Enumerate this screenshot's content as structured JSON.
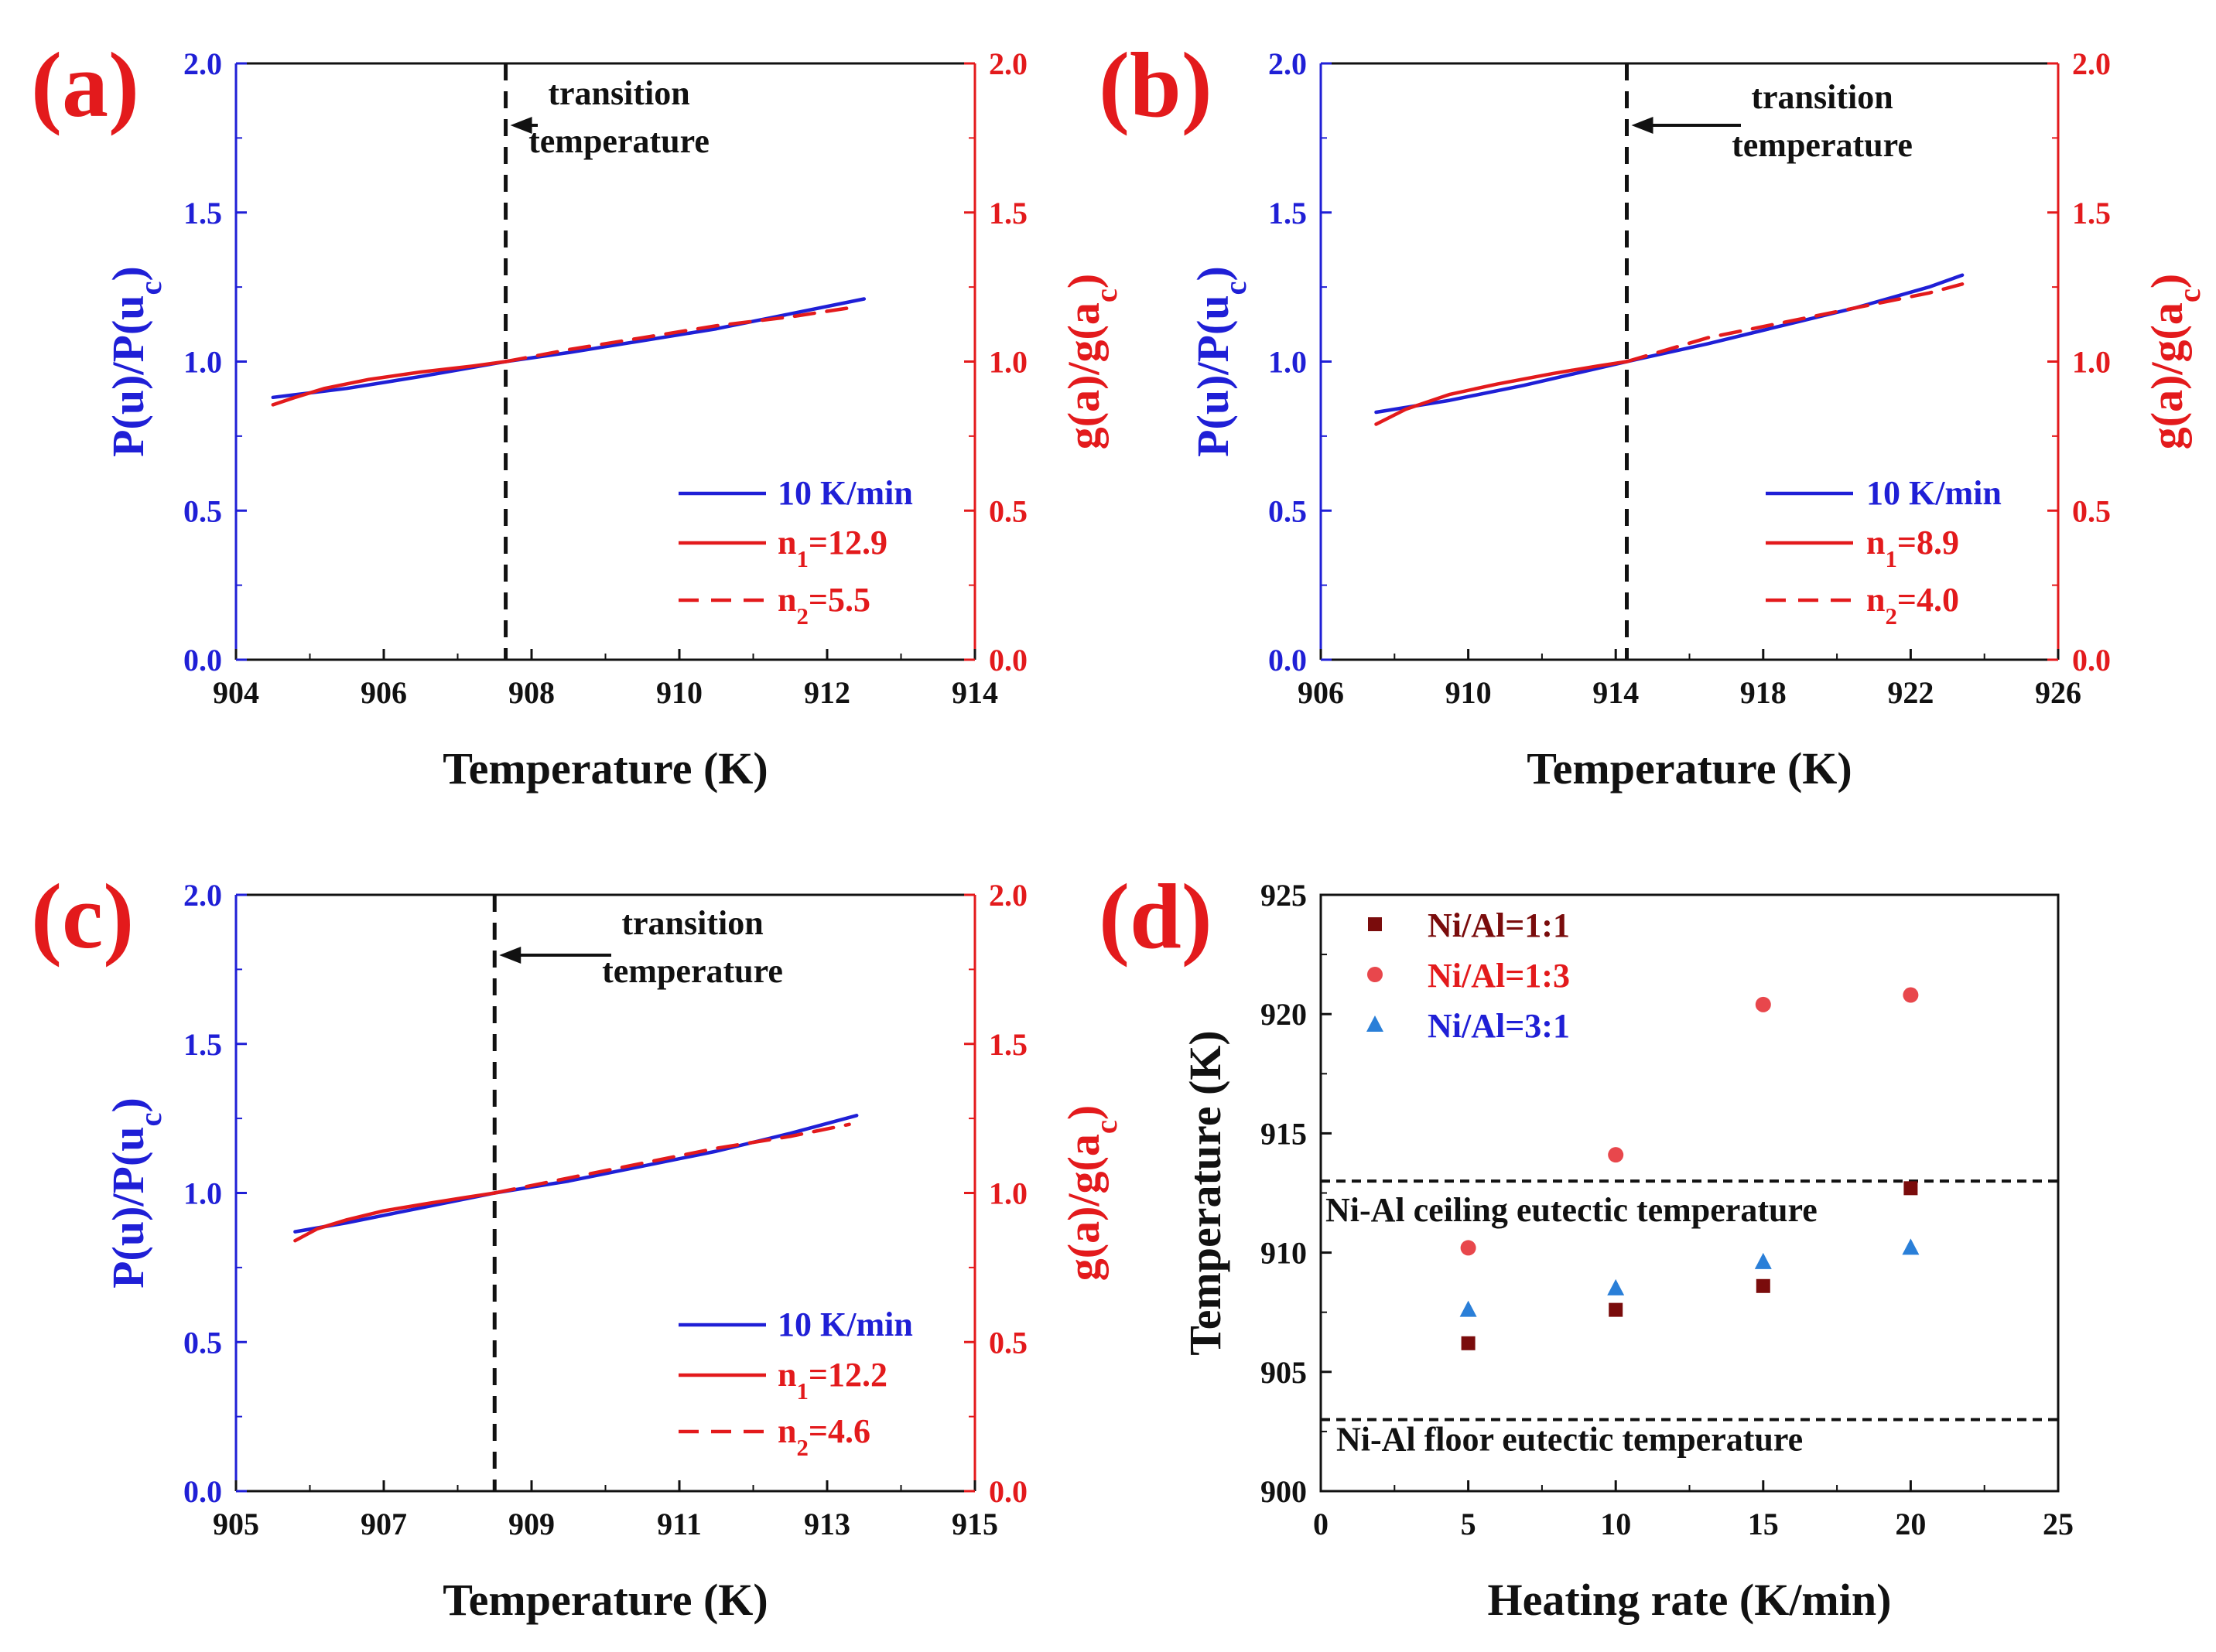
{
  "colors": {
    "blue": "#1f1fd6",
    "red": "#e31a1c",
    "black": "#111111",
    "darkred": "#7a0c0c",
    "pink": "#e8474c",
    "lightblue": "#2a7fd8"
  },
  "chart_data": [
    {
      "type": "line",
      "panel_label": "(a)",
      "xlabel": "Temperature (K)",
      "ylabel_left": {
        "main": "P(u)/P(u",
        "sub": "c",
        "close": ")"
      },
      "ylabel_right": {
        "main": "g(a)/g(a",
        "sub": "c",
        "close": ")"
      },
      "xlim": [
        904,
        914
      ],
      "xticks": [
        "904",
        "906",
        "908",
        "910",
        "912",
        "914"
      ],
      "ylim": [
        0,
        2
      ],
      "yticks": [
        "0.0",
        "0.5",
        "1.0",
        "1.5",
        "2.0"
      ],
      "transition_x": 907.65,
      "annotation": [
        "transition",
        "temperature"
      ],
      "legend": [
        {
          "pre": "10 K/min",
          "sub": "",
          "post": ""
        },
        {
          "pre": "n",
          "sub": "1",
          "post": "=12.9"
        },
        {
          "pre": "n",
          "sub": "2",
          "post": "=5.5"
        }
      ],
      "series": [
        {
          "name": "10 K/min",
          "x": [
            904.5,
            905.5,
            906.5,
            907.65,
            908.5,
            909.5,
            910.5,
            911.5,
            912.5
          ],
          "y": [
            0.88,
            0.91,
            0.95,
            1.0,
            1.03,
            1.07,
            1.11,
            1.16,
            1.21
          ]
        },
        {
          "name": "n1=12.9",
          "x": [
            904.5,
            904.8,
            905.2,
            905.8,
            906.5,
            907.2,
            907.65
          ],
          "y": [
            0.855,
            0.88,
            0.91,
            0.94,
            0.965,
            0.985,
            1.0
          ]
        },
        {
          "name": "n2=5.5",
          "x": [
            907.65,
            908.5,
            909.5,
            910.5,
            911.5,
            912.3
          ],
          "y": [
            1.0,
            1.04,
            1.08,
            1.12,
            1.15,
            1.18
          ]
        }
      ]
    },
    {
      "type": "line",
      "panel_label": "(b)",
      "xlabel": "Temperature (K)",
      "ylabel_left": {
        "main": "P(u)/P(u",
        "sub": "c",
        "close": ")"
      },
      "ylabel_right": {
        "main": "g(a)/g(a",
        "sub": "c",
        "close": ")"
      },
      "xlim": [
        906,
        926
      ],
      "xticks": [
        "906",
        "910",
        "914",
        "918",
        "922",
        "926"
      ],
      "ylim": [
        0,
        2
      ],
      "yticks": [
        "0.0",
        "0.5",
        "1.0",
        "1.5",
        "2.0"
      ],
      "transition_x": 914.3,
      "annotation": [
        "transition",
        "temperature"
      ],
      "legend": [
        {
          "pre": "10 K/min",
          "sub": "",
          "post": ""
        },
        {
          "pre": "n",
          "sub": "1",
          "post": "=8.9"
        },
        {
          "pre": "n",
          "sub": "2",
          "post": "=4.0"
        }
      ],
      "series": [
        {
          "name": "10 K/min",
          "x": [
            907.5,
            909.5,
            911.5,
            914.3,
            916.5,
            918.5,
            920.5,
            922.5,
            923.4
          ],
          "y": [
            0.83,
            0.87,
            0.92,
            1.0,
            1.06,
            1.12,
            1.18,
            1.25,
            1.29
          ]
        },
        {
          "name": "n1=8.9",
          "x": [
            907.5,
            908.3,
            909.5,
            910.8,
            912.3,
            913.5,
            914.3
          ],
          "y": [
            0.79,
            0.84,
            0.89,
            0.925,
            0.96,
            0.985,
            1.0
          ]
        },
        {
          "name": "n2=4.0",
          "x": [
            914.3,
            916.5,
            918.5,
            920.5,
            922.5,
            923.4
          ],
          "y": [
            1.0,
            1.08,
            1.13,
            1.18,
            1.23,
            1.26
          ]
        }
      ]
    },
    {
      "type": "line",
      "panel_label": "(c)",
      "xlabel": "Temperature (K)",
      "ylabel_left": {
        "main": "P(u)/P(u",
        "sub": "c",
        "close": ")"
      },
      "ylabel_right": {
        "main": "g(a)/g(a",
        "sub": "c",
        "close": ")"
      },
      "xlim": [
        905,
        915
      ],
      "xticks": [
        "905",
        "907",
        "909",
        "911",
        "913",
        "915"
      ],
      "ylim": [
        0,
        2
      ],
      "yticks": [
        "0.0",
        "0.5",
        "1.0",
        "1.5",
        "2.0"
      ],
      "transition_x": 908.5,
      "annotation": [
        "transition",
        "temperature"
      ],
      "legend": [
        {
          "pre": "10 K/min",
          "sub": "",
          "post": ""
        },
        {
          "pre": "n",
          "sub": "1",
          "post": "=12.2"
        },
        {
          "pre": "n",
          "sub": "2",
          "post": "=4.6"
        }
      ],
      "series": [
        {
          "name": "10 K/min",
          "x": [
            905.8,
            906.5,
            907.5,
            908.5,
            909.5,
            910.5,
            911.5,
            912.5,
            913.4
          ],
          "y": [
            0.87,
            0.9,
            0.95,
            1.0,
            1.04,
            1.09,
            1.14,
            1.2,
            1.26
          ]
        },
        {
          "name": "n1=12.2",
          "x": [
            905.8,
            906.1,
            906.5,
            907.0,
            907.6,
            908.1,
            908.5
          ],
          "y": [
            0.84,
            0.88,
            0.91,
            0.94,
            0.965,
            0.985,
            1.0
          ]
        },
        {
          "name": "n2=4.6",
          "x": [
            908.5,
            909.5,
            910.5,
            911.5,
            912.5,
            913.3
          ],
          "y": [
            1.0,
            1.05,
            1.1,
            1.15,
            1.19,
            1.23
          ]
        }
      ]
    },
    {
      "type": "scatter",
      "panel_label": "(d)",
      "xlabel": "Heating rate (K/min)",
      "ylabel": "Temperature (K)",
      "xlim": [
        0,
        25
      ],
      "xticks": [
        "0",
        "5",
        "10",
        "15",
        "20",
        "25"
      ],
      "ylim": [
        900,
        925
      ],
      "yticks": [
        "900",
        "905",
        "910",
        "915",
        "920",
        "925"
      ],
      "ceiling": {
        "y": 913,
        "label": "Ni-Al ceiling eutectic temperature"
      },
      "floor": {
        "y": 903,
        "label": "Ni-Al floor eutectic temperature"
      },
      "series": [
        {
          "name": "Ni/Al=1:1",
          "marker": "square",
          "x": [
            5,
            10,
            15,
            20
          ],
          "y": [
            906.2,
            907.6,
            908.6,
            912.7
          ]
        },
        {
          "name": "Ni/Al=1:3",
          "marker": "circle",
          "x": [
            5,
            10,
            15,
            20
          ],
          "y": [
            910.2,
            914.1,
            920.4,
            920.8
          ]
        },
        {
          "name": "Ni/Al=3:1",
          "marker": "triangle",
          "x": [
            5,
            10,
            15,
            20
          ],
          "y": [
            907.6,
            908.5,
            909.6,
            910.2
          ]
        }
      ]
    }
  ]
}
